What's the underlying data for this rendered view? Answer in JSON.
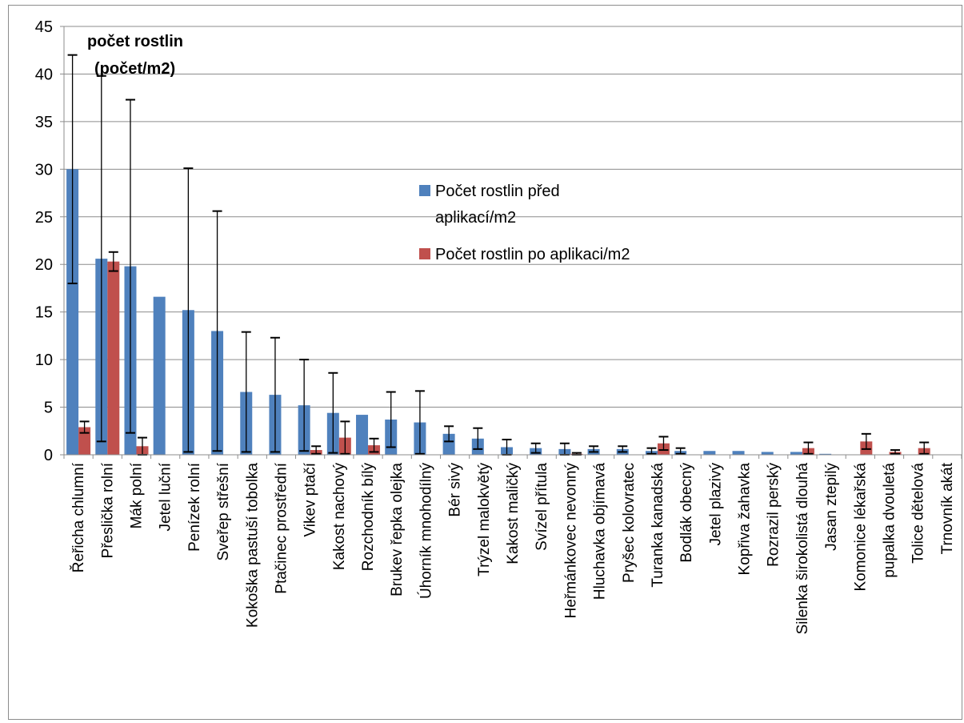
{
  "chart_data": {
    "type": "bar",
    "title": "počet rostlin (počet/m2)",
    "title_lines": [
      "počet rostlin",
      "(počet/m2)"
    ],
    "xlabel": "",
    "ylabel": "",
    "ylim": [
      0,
      45
    ],
    "yticks": [
      0,
      5,
      10,
      15,
      20,
      25,
      30,
      35,
      40,
      45
    ],
    "grid": true,
    "legend_position": "center-right",
    "categories": [
      "Řeřicha chlumní",
      "Přeslička rolní",
      "Mák polní",
      "Jetel luční",
      "Penízek rolní",
      "Sveřep střešní",
      "Kokoška pastuší tobolka",
      "Ptačinec prostřední",
      "Vikev ptačí",
      "Kakost nachový",
      "Rozchodník bílý",
      "Brukev řepka olejka",
      "Úhorník mnohodílný",
      "Bér sivý",
      "Trýzel malokvětý",
      "Kakost maličký",
      "Svízel přítula",
      "Heřmánkovec nevonný",
      "Hluchavka objímavá",
      "Pryšec kolovratec",
      "Turanka kanadská",
      "Bodlák obecný",
      "Jetel plazivý",
      "Kopřiva žahavka",
      "Rozrazil perský",
      "Silenka širokolistá dlouhá",
      "Jasan ztepilý",
      "Komonice lékařská",
      "pupalka dvouletá",
      "Tolice dětelová",
      "Trnovník akát"
    ],
    "series": [
      {
        "name": "Počet rostlin před aplikací/m2",
        "name_lines": [
          "Počet rostlin před",
          "aplikací/m2"
        ],
        "color": "#4F81BD",
        "values": [
          30,
          20.6,
          19.8,
          16.6,
          15.2,
          13.0,
          6.6,
          6.3,
          5.2,
          4.4,
          4.2,
          3.7,
          3.4,
          2.2,
          1.7,
          0.8,
          0.7,
          0.6,
          0.6,
          0.6,
          0.4,
          0.4,
          0.4,
          0.4,
          0.3,
          0.3,
          0.1,
          0.0,
          0.0,
          0.0,
          0.0
        ],
        "error": [
          12,
          19.2,
          17.5,
          0,
          14.9,
          12.6,
          6.3,
          6.0,
          4.8,
          4.2,
          0,
          2.9,
          3.3,
          0.8,
          1.1,
          0.8,
          0.5,
          0.6,
          0.3,
          0.3,
          0.3,
          0.3,
          0,
          0,
          0,
          0,
          0,
          0,
          0,
          0,
          0
        ]
      },
      {
        "name": "Počet rostlin po aplikaci/m2",
        "color": "#C0504D",
        "values": [
          2.9,
          20.3,
          0.9,
          0,
          0,
          0,
          0,
          0,
          0.5,
          1.8,
          1.0,
          0,
          0,
          0,
          0,
          0,
          0,
          0.1,
          0,
          0,
          1.2,
          0,
          0,
          0,
          0,
          0.7,
          0,
          1.4,
          0.3,
          0.7,
          0
        ],
        "error": [
          0.6,
          1.0,
          0.9,
          0,
          0,
          0,
          0,
          0,
          0.4,
          1.7,
          0.7,
          0,
          0,
          0,
          0,
          0,
          0,
          0.1,
          0,
          0,
          0.7,
          0,
          0,
          0,
          0,
          0.6,
          0,
          0.8,
          0.2,
          0.6,
          0
        ]
      }
    ]
  }
}
